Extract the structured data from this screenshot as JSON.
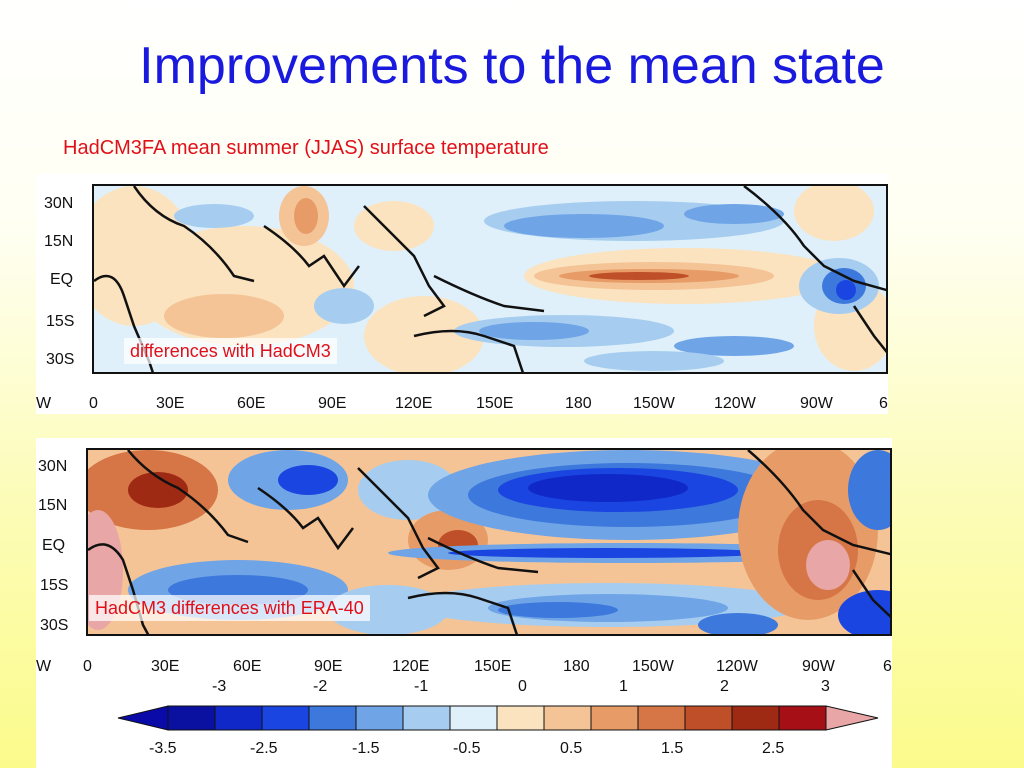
{
  "slide": {
    "title": "Improvements to the mean state",
    "subtitle": "HadCM3FA mean summer (JJAS) surface temperature"
  },
  "panel_top": {
    "annotation": "differences with HadCM3",
    "lat_labels": [
      "30N",
      "15N",
      "EQ",
      "15S",
      "30S"
    ],
    "lon_labels": [
      "W",
      "0",
      "30E",
      "60E",
      "90E",
      "120E",
      "150E",
      "180",
      "150W",
      "120W",
      "90W",
      "6"
    ]
  },
  "panel_bottom": {
    "annotation": "HadCM3 differences with ERA-40",
    "lat_labels": [
      "30N",
      "15N",
      "EQ",
      "15S",
      "30S"
    ],
    "lon_labels": [
      "W",
      "0",
      "30E",
      "60E",
      "90E",
      "120E",
      "150E",
      "180",
      "150W",
      "120W",
      "90W",
      "6"
    ]
  },
  "colorbar": {
    "upper_labels": [
      "-3",
      "-2",
      "-1",
      "0",
      "1",
      "2",
      "3"
    ],
    "lower_labels": [
      "-3.5",
      "-2.5",
      "-1.5",
      "-0.5",
      "0.5",
      "1.5",
      "2.5"
    ],
    "colors": [
      "#0a10a0",
      "#1028c8",
      "#1a45e0",
      "#3d78dc",
      "#6fa4e6",
      "#a6cdf0",
      "#dff0fb",
      "#fbe3bf",
      "#f4c496",
      "#e79c68",
      "#d67545",
      "#bf4f28",
      "#9e2a14",
      "#a50f15"
    ],
    "lower_arrow_color": "#0a0aa8",
    "upper_arrow_color": "#e8a6a6"
  }
}
